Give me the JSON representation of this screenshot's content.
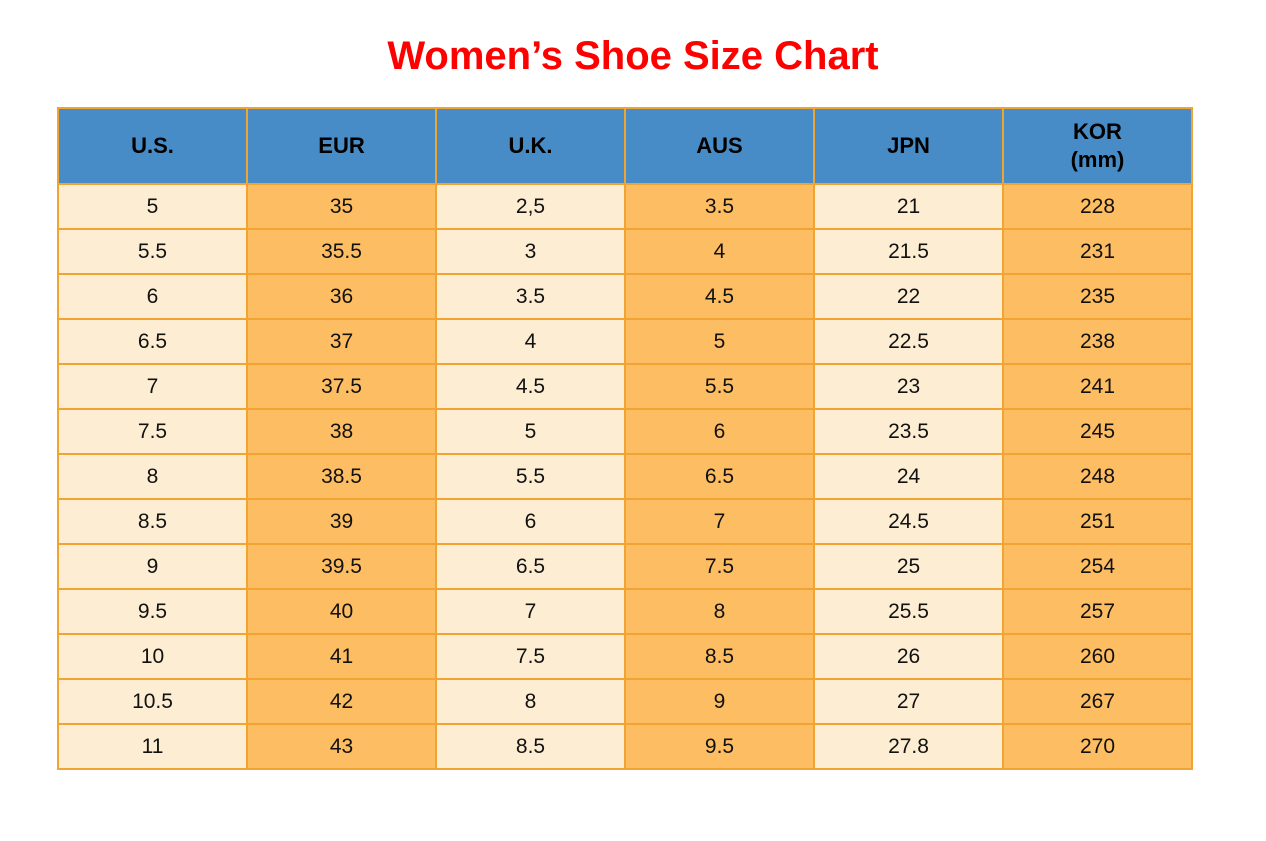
{
  "page": {
    "title": "Women’s Shoe Size Chart"
  },
  "colors": {
    "page_bg": "#ffffff",
    "title": "#fe0000",
    "header_bg": "#478cc6",
    "header_text": "#000000",
    "cell_cream": "#fdeed3",
    "cell_orange": "#fdbd62",
    "border": "#f2a432",
    "cell_text": "#111111"
  },
  "chart_data": {
    "type": "table",
    "title": "Women’s Shoe Size Chart",
    "columns": [
      {
        "id": "us",
        "label": "U.S."
      },
      {
        "id": "eur",
        "label": "EUR"
      },
      {
        "id": "uk",
        "label": "U.K."
      },
      {
        "id": "aus",
        "label": "AUS"
      },
      {
        "id": "jpn",
        "label": "JPN"
      },
      {
        "id": "kor",
        "label": "KOR\n(mm)"
      }
    ],
    "rows": [
      [
        "5",
        "35",
        "2,5",
        "3.5",
        "21",
        "228"
      ],
      [
        "5.5",
        "35.5",
        "3",
        "4",
        "21.5",
        "231"
      ],
      [
        "6",
        "36",
        "3.5",
        "4.5",
        "22",
        "235"
      ],
      [
        "6.5",
        "37",
        "4",
        "5",
        "22.5",
        "238"
      ],
      [
        "7",
        "37.5",
        "4.5",
        "5.5",
        "23",
        "241"
      ],
      [
        "7.5",
        "38",
        "5",
        "6",
        "23.5",
        "245"
      ],
      [
        "8",
        "38.5",
        "5.5",
        "6.5",
        "24",
        "248"
      ],
      [
        "8.5",
        "39",
        "6",
        "7",
        "24.5",
        "251"
      ],
      [
        "9",
        "39.5",
        "6.5",
        "7.5",
        "25",
        "254"
      ],
      [
        "9.5",
        "40",
        "7",
        "8",
        "25.5",
        "257"
      ],
      [
        "10",
        "41",
        "7.5",
        "8.5",
        "26",
        "260"
      ],
      [
        "10.5",
        "42",
        "8",
        "9",
        "27",
        "267"
      ],
      [
        "11",
        "43",
        "8.5",
        "9.5",
        "27.8",
        "270"
      ]
    ]
  }
}
